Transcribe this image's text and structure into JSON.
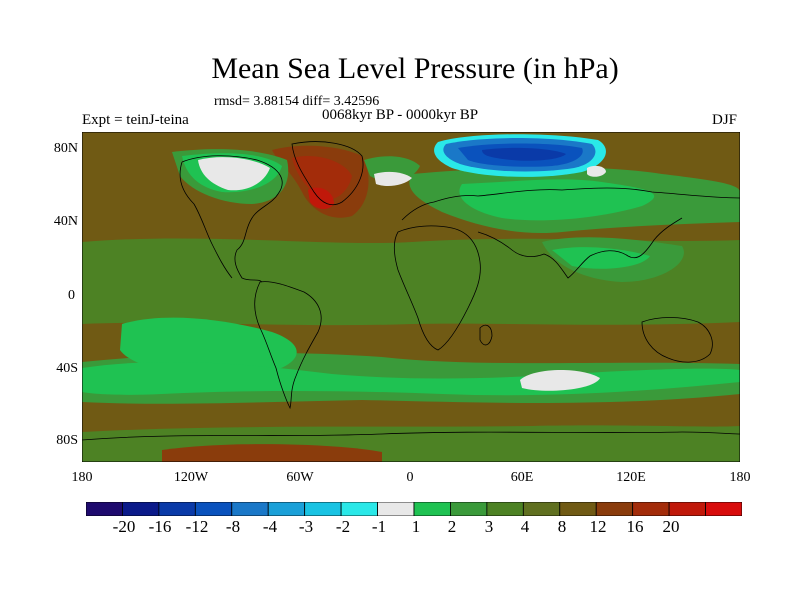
{
  "title": "Mean Sea Level Pressure (in hPa)",
  "stats": "rmsd= 3.88154 diff= 3.42596",
  "period": "0068kyr BP - 0000kyr BP",
  "experiment": "Expt = teinJ-teina",
  "season": "DJF",
  "lat_labels": [
    "80N",
    "40N",
    "0",
    "40S",
    "80S"
  ],
  "lon_labels": [
    "180",
    "120W",
    "60W",
    "0",
    "60E",
    "120E",
    "180"
  ],
  "colorbar": {
    "colors": [
      "#1e0a6e",
      "#0b1a8a",
      "#0a3aa8",
      "#0a52bd",
      "#1a78c8",
      "#1aa0d8",
      "#19c3e3",
      "#2ae8e8",
      "#e8e8e8",
      "#1fc252",
      "#3a9a3a",
      "#4d8224",
      "#607020",
      "#705a14",
      "#8a3c0c",
      "#a32c0a",
      "#c0180a",
      "#d80c0c"
    ],
    "labels": [
      "-20",
      "-16",
      "-12",
      "-8",
      "-4",
      "-3",
      "-2",
      "-1",
      "1",
      "2",
      "3",
      "4",
      "8",
      "12",
      "16",
      "20"
    ]
  },
  "map_colors": {
    "background": "#705a14",
    "level_3": "#3a9a3a",
    "level_4": "#4d8224",
    "level_2": "#1fc252",
    "level_1": "#e8e8e8",
    "level_12": "#8a3c0c",
    "level_16": "#a32c0a",
    "level_20": "#c0180a",
    "neg_1": "#2ae8e8",
    "neg_4": "#1a78c8",
    "neg_8": "#0a52bd",
    "neg_12": "#0a3aa8"
  }
}
